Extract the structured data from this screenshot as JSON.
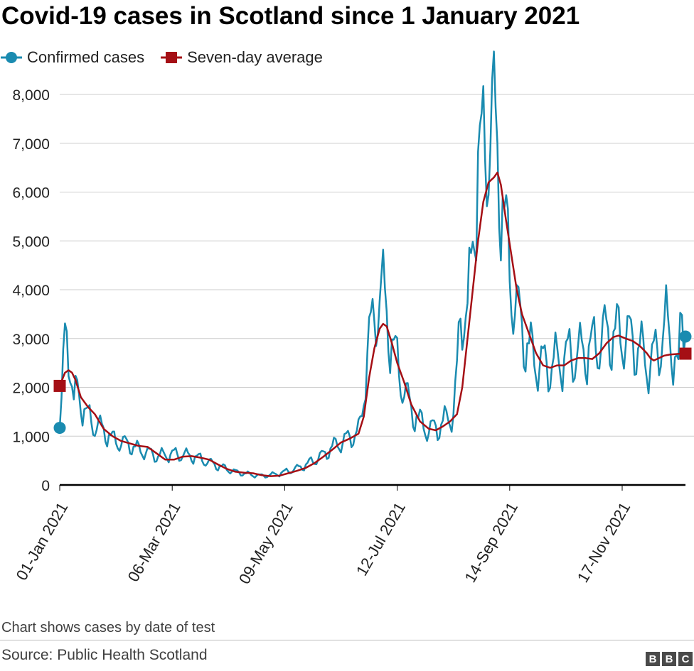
{
  "header": {
    "title": "Covid-19 cases in Scotland since 1 January 2021"
  },
  "legend": {
    "confirmed_label": "Confirmed cases",
    "average_label": "Seven-day average"
  },
  "colors": {
    "confirmed": "#1a8bb0",
    "average": "#a50f15",
    "grid": "#cccccc",
    "axis": "#000000"
  },
  "chart_data": {
    "type": "line",
    "title": "Covid-19 cases in Scotland since 1 January 2021",
    "xlabel": "",
    "ylabel": "",
    "ylim": [
      0,
      8000
    ],
    "ytick_values": [
      0,
      1000,
      2000,
      3000,
      4000,
      5000,
      6000,
      7000,
      8000
    ],
    "ytick_labels": [
      "0",
      "1,000",
      "2,000",
      "3,000",
      "4,000",
      "5,000",
      "6,000",
      "7,000",
      "8,000"
    ],
    "x_start_day": 0,
    "x_end_day": 356,
    "xtick_days": [
      0,
      64,
      128,
      192,
      256,
      320
    ],
    "xtick_labels": [
      "01-Jan 2021",
      "06-Mar 2021",
      "09-May 2021",
      "12-Jul 2021",
      "14-Sep 2021",
      "17-Nov 2021"
    ],
    "series": [
      {
        "name": "Confirmed cases",
        "style": "jagged",
        "marker": "circle",
        "first_value": 1170,
        "last_value": 3040,
        "anchors": [
          [
            0,
            1170
          ],
          [
            2,
            2400
          ],
          [
            4,
            3050
          ],
          [
            6,
            2500
          ],
          [
            8,
            1600
          ],
          [
            10,
            1900
          ],
          [
            12,
            1700
          ],
          [
            15,
            1400
          ],
          [
            20,
            1200
          ],
          [
            25,
            1100
          ],
          [
            30,
            900
          ],
          [
            35,
            850
          ],
          [
            40,
            800
          ],
          [
            45,
            700
          ],
          [
            50,
            650
          ],
          [
            55,
            580
          ],
          [
            60,
            600
          ],
          [
            65,
            620
          ],
          [
            70,
            600
          ],
          [
            75,
            580
          ],
          [
            80,
            520
          ],
          [
            85,
            450
          ],
          [
            90,
            380
          ],
          [
            95,
            320
          ],
          [
            100,
            260
          ],
          [
            105,
            230
          ],
          [
            110,
            200
          ],
          [
            115,
            180
          ],
          [
            120,
            200
          ],
          [
            125,
            230
          ],
          [
            130,
            280
          ],
          [
            135,
            330
          ],
          [
            140,
            400
          ],
          [
            145,
            500
          ],
          [
            150,
            600
          ],
          [
            155,
            750
          ],
          [
            160,
            850
          ],
          [
            165,
            950
          ],
          [
            170,
            1050
          ],
          [
            172,
            1400
          ],
          [
            174,
            2300
          ],
          [
            176,
            3000
          ],
          [
            178,
            3100
          ],
          [
            180,
            3500
          ],
          [
            182,
            3900
          ],
          [
            184,
            3800
          ],
          [
            186,
            3400
          ],
          [
            188,
            3000
          ],
          [
            190,
            2700
          ],
          [
            193,
            2300
          ],
          [
            196,
            1900
          ],
          [
            200,
            1500
          ],
          [
            205,
            1250
          ],
          [
            210,
            1100
          ],
          [
            215,
            1150
          ],
          [
            220,
            1300
          ],
          [
            224,
            1450
          ],
          [
            226,
            2200
          ],
          [
            228,
            3300
          ],
          [
            230,
            3600
          ],
          [
            232,
            3400
          ],
          [
            234,
            4200
          ],
          [
            236,
            5500
          ],
          [
            238,
            6600
          ],
          [
            240,
            6500
          ],
          [
            242,
            6700
          ],
          [
            244,
            7100
          ],
          [
            246,
            7300
          ],
          [
            248,
            6900
          ],
          [
            250,
            6300
          ],
          [
            252,
            5600
          ],
          [
            254,
            4900
          ],
          [
            256,
            4300
          ],
          [
            258,
            3800
          ],
          [
            260,
            3500
          ],
          [
            263,
            3100
          ],
          [
            266,
            2800
          ],
          [
            270,
            2500
          ],
          [
            275,
            2400
          ],
          [
            280,
            2400
          ],
          [
            285,
            2500
          ],
          [
            290,
            2600
          ],
          [
            295,
            2600
          ],
          [
            300,
            2700
          ],
          [
            305,
            2800
          ],
          [
            310,
            3000
          ],
          [
            315,
            3000
          ],
          [
            320,
            3000
          ],
          [
            325,
            2900
          ],
          [
            330,
            2700
          ],
          [
            333,
            2500
          ],
          [
            336,
            2400
          ],
          [
            340,
            2700
          ],
          [
            343,
            3000
          ],
          [
            345,
            3200
          ],
          [
            349,
            2700
          ],
          [
            352,
            2200
          ],
          [
            354,
            3500
          ],
          [
            356,
            3040
          ]
        ]
      },
      {
        "name": "Seven-day average",
        "style": "smooth",
        "marker": "square",
        "first_value": 2030,
        "last_value": 2690,
        "anchors": [
          [
            0,
            2030
          ],
          [
            3,
            2300
          ],
          [
            5,
            2350
          ],
          [
            7,
            2300
          ],
          [
            9,
            2150
          ],
          [
            12,
            1800
          ],
          [
            16,
            1600
          ],
          [
            20,
            1450
          ],
          [
            25,
            1150
          ],
          [
            30,
            1000
          ],
          [
            35,
            900
          ],
          [
            40,
            850
          ],
          [
            45,
            800
          ],
          [
            50,
            780
          ],
          [
            55,
            650
          ],
          [
            60,
            520
          ],
          [
            65,
            520
          ],
          [
            70,
            580
          ],
          [
            75,
            590
          ],
          [
            80,
            560
          ],
          [
            85,
            520
          ],
          [
            90,
            420
          ],
          [
            95,
            330
          ],
          [
            100,
            270
          ],
          [
            105,
            250
          ],
          [
            110,
            240
          ],
          [
            115,
            200
          ],
          [
            120,
            180
          ],
          [
            125,
            190
          ],
          [
            130,
            240
          ],
          [
            135,
            290
          ],
          [
            140,
            350
          ],
          [
            145,
            450
          ],
          [
            150,
            580
          ],
          [
            155,
            720
          ],
          [
            160,
            870
          ],
          [
            165,
            950
          ],
          [
            170,
            1050
          ],
          [
            173,
            1400
          ],
          [
            176,
            2200
          ],
          [
            179,
            2800
          ],
          [
            182,
            3200
          ],
          [
            184,
            3300
          ],
          [
            186,
            3250
          ],
          [
            189,
            2900
          ],
          [
            192,
            2500
          ],
          [
            196,
            2100
          ],
          [
            200,
            1650
          ],
          [
            205,
            1300
          ],
          [
            210,
            1150
          ],
          [
            214,
            1120
          ],
          [
            218,
            1200
          ],
          [
            222,
            1300
          ],
          [
            226,
            1450
          ],
          [
            229,
            2000
          ],
          [
            232,
            3000
          ],
          [
            235,
            4000
          ],
          [
            238,
            5000
          ],
          [
            241,
            5800
          ],
          [
            244,
            6200
          ],
          [
            247,
            6300
          ],
          [
            249,
            6400
          ],
          [
            251,
            6150
          ],
          [
            254,
            5400
          ],
          [
            257,
            4700
          ],
          [
            260,
            4000
          ],
          [
            263,
            3500
          ],
          [
            267,
            3100
          ],
          [
            271,
            2700
          ],
          [
            275,
            2450
          ],
          [
            279,
            2400
          ],
          [
            283,
            2450
          ],
          [
            287,
            2450
          ],
          [
            291,
            2550
          ],
          [
            295,
            2600
          ],
          [
            299,
            2600
          ],
          [
            303,
            2580
          ],
          [
            307,
            2700
          ],
          [
            311,
            2900
          ],
          [
            315,
            3030
          ],
          [
            318,
            3060
          ],
          [
            322,
            3000
          ],
          [
            326,
            2950
          ],
          [
            330,
            2850
          ],
          [
            334,
            2700
          ],
          [
            336,
            2600
          ],
          [
            338,
            2550
          ],
          [
            341,
            2600
          ],
          [
            344,
            2650
          ],
          [
            347,
            2670
          ],
          [
            350,
            2680
          ],
          [
            353,
            2690
          ],
          [
            356,
            2690
          ]
        ]
      }
    ]
  },
  "footer": {
    "note": "Chart shows cases by date of test",
    "source": "Source: Public Health Scotland",
    "logo_letters": [
      "B",
      "B",
      "C"
    ]
  }
}
